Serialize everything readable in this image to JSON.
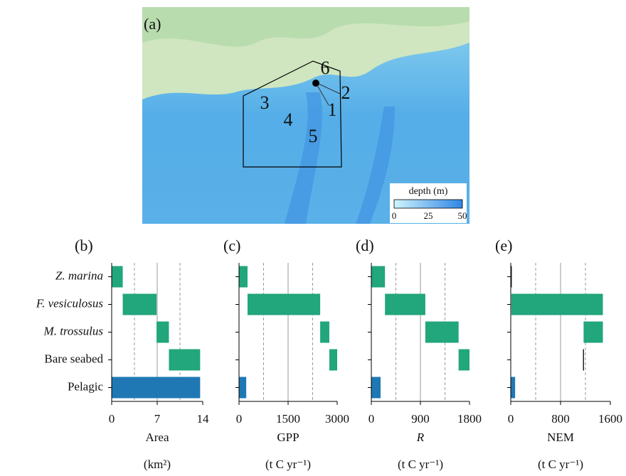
{
  "map": {
    "label": "(a)",
    "sites": [
      "1",
      "2",
      "3",
      "4",
      "5",
      "6"
    ],
    "legend": {
      "title": "depth (m)",
      "ticks": [
        0,
        25,
        50
      ]
    }
  },
  "chart_data": [
    {
      "type": "waterfall",
      "label": "(b)",
      "xlabel": "Area",
      "unit": "(km²)",
      "categories": [
        "Z. marina",
        "F. vesiculosus",
        "M. trossulus",
        "Bare seabed",
        "Pelagic"
      ],
      "values": [
        1.7,
        5.2,
        1.9,
        4.8,
        13.6
      ],
      "color": "#22a67c",
      "total_color": "#1f78b4",
      "xlim": [
        0,
        14
      ],
      "xticks": [
        0,
        7,
        14
      ],
      "minor_grid": [
        3.5,
        10.5
      ]
    },
    {
      "type": "waterfall",
      "label": "(c)",
      "xlabel": "GPP",
      "unit": "(t C yr⁻¹)",
      "values": [
        260,
        2220,
        280,
        240,
        220
      ],
      "color": "#22a67c",
      "total_color": "#1f78b4",
      "xlim": [
        0,
        3000
      ],
      "xticks": [
        0,
        1500,
        3000
      ],
      "minor_grid": [
        750,
        2250
      ]
    },
    {
      "type": "waterfall",
      "label": "(d)",
      "xlabel": "R",
      "unit": "(t C yr⁻¹)",
      "values": [
        250,
        740,
        610,
        200,
        170
      ],
      "color": "#22a67c",
      "total_color": "#1f78b4",
      "xlim": [
        0,
        1800
      ],
      "xticks": [
        0,
        900,
        1800
      ],
      "minor_grid": [
        450,
        1350
      ]
    },
    {
      "type": "waterfall",
      "label": "(e)",
      "xlabel": "NEM",
      "unit": "(t C yr⁻¹)",
      "values": [
        10,
        1470,
        -310,
        -10,
        70
      ],
      "color": "#22a67c",
      "total_color": "#1f78b4",
      "xlim": [
        0,
        1600
      ],
      "xticks": [
        0,
        800,
        1600
      ],
      "minor_grid": [
        400,
        1200
      ]
    }
  ]
}
